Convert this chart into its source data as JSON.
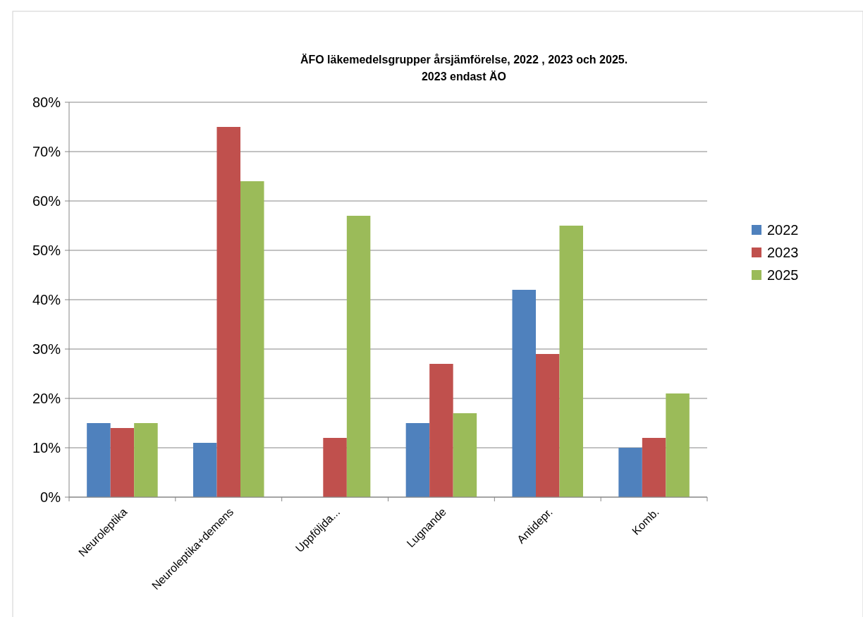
{
  "chart_data": {
    "type": "bar",
    "title": "ÄFO läkemedelsgrupper årsjämförelse, 2022 , 2023 och 2025.",
    "subtitle": "2023 endast ÄO",
    "categories": [
      "Neuroleptika",
      "Neuroleptika+demens",
      "Uppföljda...",
      "Lugnande",
      "Antidepr.",
      "Komb."
    ],
    "series": [
      {
        "name": "2022",
        "color": "#4f81bd",
        "values": [
          15,
          11,
          0,
          15,
          42,
          10
        ]
      },
      {
        "name": "2023",
        "color": "#c0504d",
        "values": [
          14,
          75,
          12,
          27,
          29,
          12
        ]
      },
      {
        "name": "2025",
        "color": "#9bbb59",
        "values": [
          15,
          64,
          57,
          17,
          55,
          21
        ]
      }
    ],
    "ylim": [
      0,
      80
    ],
    "yticks": [
      {
        "value": 0,
        "label": "0%"
      },
      {
        "value": 10,
        "label": "10%"
      },
      {
        "value": 20,
        "label": "20%"
      },
      {
        "value": 30,
        "label": "30%"
      },
      {
        "value": 40,
        "label": "40%"
      },
      {
        "value": 50,
        "label": "50%"
      },
      {
        "value": 60,
        "label": "60%"
      },
      {
        "value": 70,
        "label": "70%"
      },
      {
        "value": 80,
        "label": "80%"
      }
    ],
    "grid": "y",
    "legend": "right"
  }
}
